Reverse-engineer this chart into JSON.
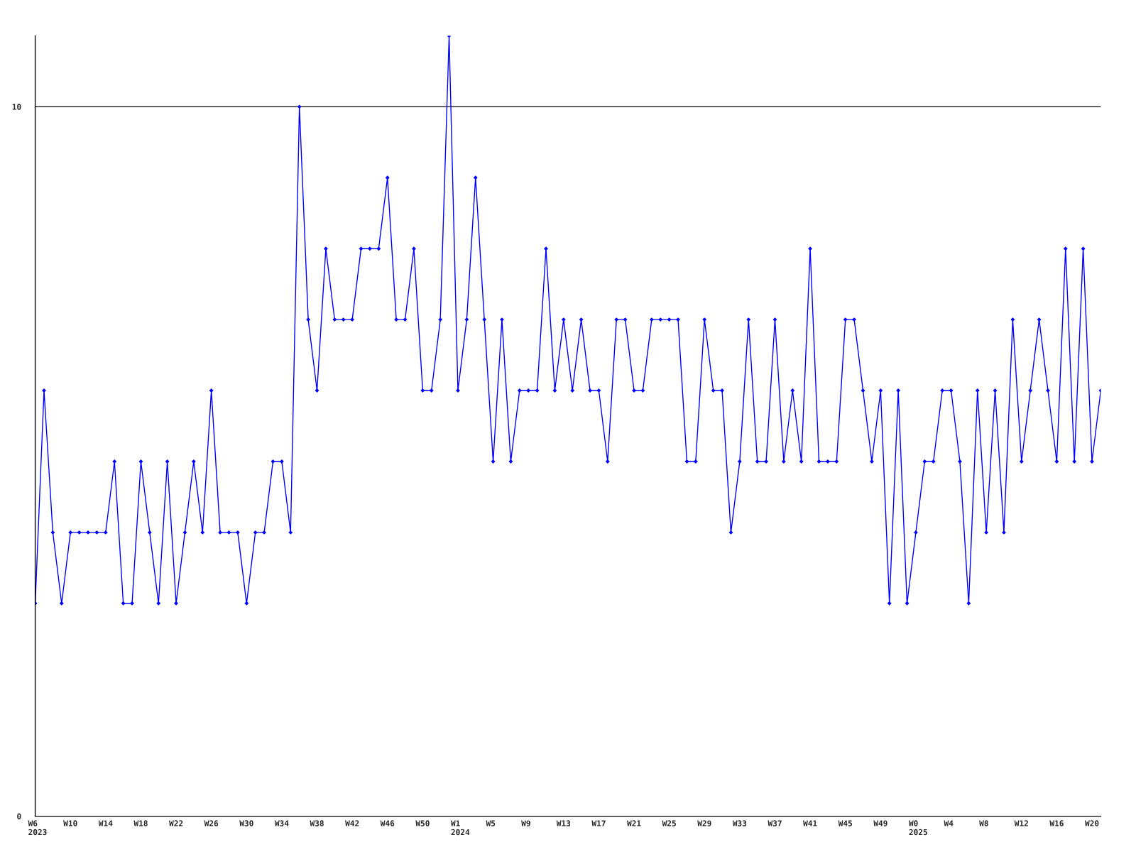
{
  "chart_data": {
    "type": "line",
    "color": "#0000ff",
    "marker": "diamond",
    "grid": "y",
    "ylim": [
      0,
      11
    ],
    "yticks": [
      0,
      10
    ],
    "categories": [
      "W6\n2023",
      null,
      null,
      null,
      "W10",
      null,
      null,
      null,
      "W14",
      null,
      null,
      null,
      "W18",
      null,
      null,
      null,
      "W22",
      null,
      null,
      null,
      "W26",
      null,
      null,
      null,
      "W30",
      null,
      null,
      null,
      "W34",
      null,
      null,
      null,
      "W38",
      null,
      null,
      null,
      "W42",
      null,
      null,
      null,
      "W46",
      null,
      null,
      null,
      "W50",
      null,
      null,
      null,
      "W1\n2024",
      null,
      null,
      null,
      "W5",
      null,
      null,
      null,
      "W9",
      null,
      null,
      null,
      "W13",
      null,
      null,
      null,
      "W17",
      null,
      null,
      null,
      "W21",
      null,
      null,
      null,
      "W25",
      null,
      null,
      null,
      "W29",
      null,
      null,
      null,
      "W33",
      null,
      null,
      null,
      "W37",
      null,
      null,
      null,
      "W41",
      null,
      null,
      null,
      "W45",
      null,
      null,
      null,
      "W49",
      null,
      null,
      null,
      "W0\n2025",
      null,
      null,
      null,
      "W4",
      null,
      null,
      null,
      "W8",
      null,
      null,
      null,
      "W12",
      null,
      null,
      null,
      "W16",
      null,
      null,
      null,
      "W20",
      null
    ],
    "values": [
      3,
      6,
      4,
      3,
      4,
      4,
      4,
      4,
      4,
      5,
      3,
      3,
      5,
      4,
      3,
      5,
      3,
      4,
      5,
      4,
      6,
      4,
      4,
      4,
      3,
      4,
      4,
      5,
      5,
      4,
      10,
      7,
      6,
      8,
      7,
      7,
      7,
      8,
      8,
      8,
      9,
      7,
      7,
      8,
      6,
      6,
      7,
      11,
      6,
      7,
      9,
      7,
      5,
      7,
      5,
      6,
      6,
      6,
      8,
      6,
      7,
      6,
      7,
      6,
      6,
      5,
      7,
      7,
      6,
      6,
      7,
      7,
      7,
      7,
      5,
      5,
      7,
      6,
      6,
      4,
      5,
      7,
      5,
      5,
      7,
      5,
      6,
      5,
      8,
      5,
      5,
      5,
      7,
      7,
      6,
      5,
      6,
      3,
      6,
      3,
      4,
      5,
      5,
      6,
      6,
      5,
      3,
      6,
      4,
      6,
      4,
      7,
      5,
      6,
      7,
      6,
      5,
      8,
      5,
      8,
      5,
      6
    ]
  }
}
